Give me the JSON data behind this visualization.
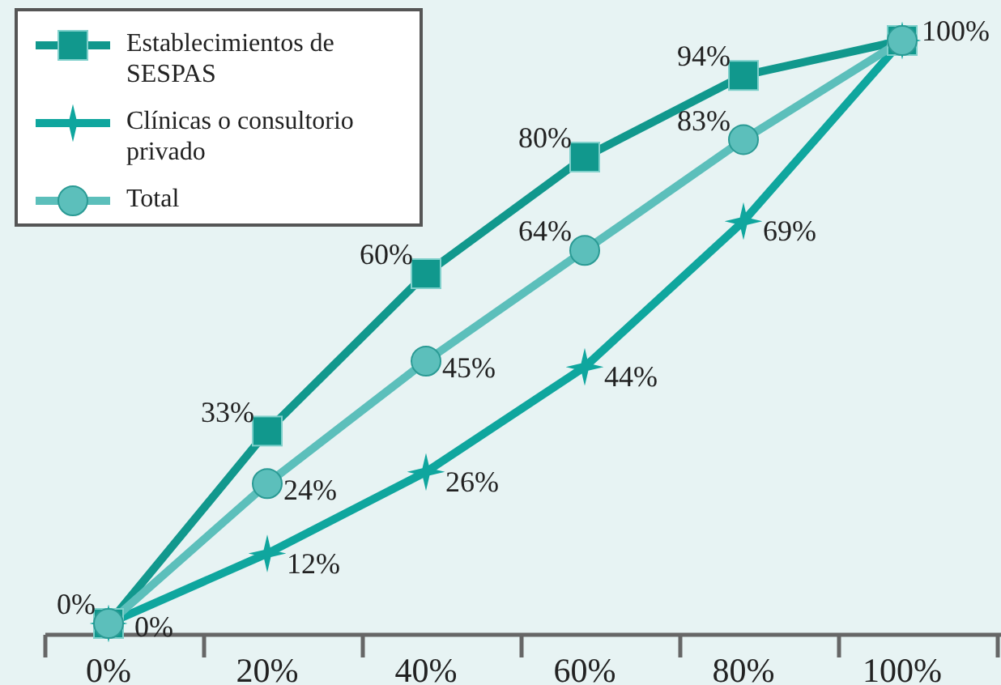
{
  "chart_data": {
    "type": "line",
    "categories": [
      "0%",
      "20%",
      "40%",
      "60%",
      "80%",
      "100%"
    ],
    "series": [
      {
        "name": "Establecimientos de SESPAS",
        "color": "#11988d",
        "marker": "square",
        "values": [
          0,
          33,
          60,
          80,
          94,
          100
        ],
        "value_labels": [
          "0%",
          "33%",
          "60%",
          "80%",
          "94%",
          "100%"
        ]
      },
      {
        "name": "Clínicas o consultorio privado",
        "color": "#0fa69e",
        "marker": "star",
        "values": [
          0,
          12,
          26,
          44,
          69,
          100
        ],
        "value_labels": [
          "0%",
          "12%",
          "26%",
          "44%",
          "69%",
          null
        ]
      },
      {
        "name": "Total",
        "color": "#5cbfbb",
        "marker": "circle",
        "values": [
          0,
          24,
          45,
          64,
          83,
          100
        ],
        "value_labels": [
          null,
          "24%",
          "45%",
          "64%",
          "83%",
          null
        ]
      }
    ],
    "legend": "top left"
  }
}
